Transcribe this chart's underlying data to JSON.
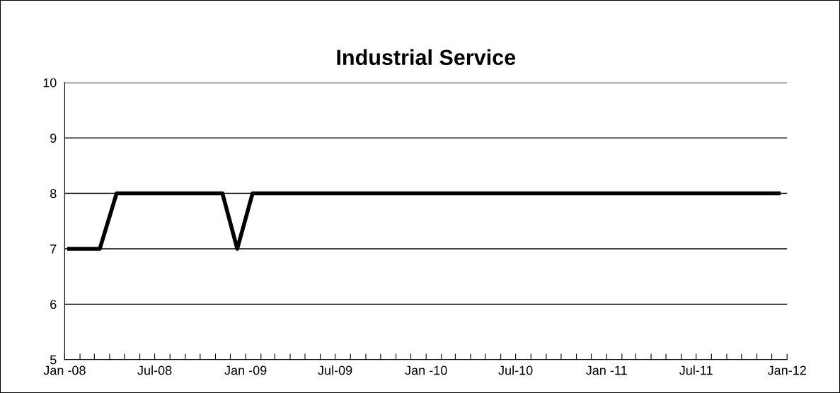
{
  "chart_data": {
    "type": "line",
    "title": "Industrial Service",
    "x": [
      "2008-01-10",
      "2008-03-12",
      "2008-04-15",
      "2008-11-15",
      "2008-12-15",
      "2009-01-15",
      "2011-12-15"
    ],
    "series": [
      {
        "color": "#000000",
        "values": [
          7,
          7,
          8,
          8,
          7,
          8,
          8
        ]
      }
    ],
    "xlim": [
      "2008-01-01",
      "2012-01-01"
    ],
    "xticks": [
      {
        "value": "2008-01-01",
        "label": "Jan -08"
      },
      {
        "value": "2008-02-01",
        "label": null
      },
      {
        "value": "2008-03-01",
        "label": null
      },
      {
        "value": "2008-04-01",
        "label": null
      },
      {
        "value": "2008-05-01",
        "label": null
      },
      {
        "value": "2008-06-01",
        "label": null
      },
      {
        "value": "2008-07-01",
        "label": "Jul-08"
      },
      {
        "value": "2008-08-01",
        "label": null
      },
      {
        "value": "2008-09-01",
        "label": null
      },
      {
        "value": "2008-10-01",
        "label": null
      },
      {
        "value": "2008-11-01",
        "label": null
      },
      {
        "value": "2008-12-01",
        "label": null
      },
      {
        "value": "2009-01-01",
        "label": "Jan -09"
      },
      {
        "value": "2009-02-01",
        "label": null
      },
      {
        "value": "2009-03-01",
        "label": null
      },
      {
        "value": "2009-04-01",
        "label": null
      },
      {
        "value": "2009-05-01",
        "label": null
      },
      {
        "value": "2009-06-01",
        "label": null
      },
      {
        "value": "2009-07-01",
        "label": "Jul-09"
      },
      {
        "value": "2009-08-01",
        "label": null
      },
      {
        "value": "2009-09-01",
        "label": null
      },
      {
        "value": "2009-10-01",
        "label": null
      },
      {
        "value": "2009-11-01",
        "label": null
      },
      {
        "value": "2009-12-01",
        "label": null
      },
      {
        "value": "2010-01-01",
        "label": "Jan -10"
      },
      {
        "value": "2010-02-01",
        "label": null
      },
      {
        "value": "2010-03-01",
        "label": null
      },
      {
        "value": "2010-04-01",
        "label": null
      },
      {
        "value": "2010-05-01",
        "label": null
      },
      {
        "value": "2010-06-01",
        "label": null
      },
      {
        "value": "2010-07-01",
        "label": "Jul-10"
      },
      {
        "value": "2010-08-01",
        "label": null
      },
      {
        "value": "2010-09-01",
        "label": null
      },
      {
        "value": "2010-10-01",
        "label": null
      },
      {
        "value": "2010-11-01",
        "label": null
      },
      {
        "value": "2010-12-01",
        "label": null
      },
      {
        "value": "2011-01-01",
        "label": "Jan -11"
      },
      {
        "value": "2011-02-01",
        "label": null
      },
      {
        "value": "2011-03-01",
        "label": null
      },
      {
        "value": "2011-04-01",
        "label": null
      },
      {
        "value": "2011-05-01",
        "label": null
      },
      {
        "value": "2011-06-01",
        "label": null
      },
      {
        "value": "2011-07-01",
        "label": "Jul-11"
      },
      {
        "value": "2011-08-01",
        "label": null
      },
      {
        "value": "2011-09-01",
        "label": null
      },
      {
        "value": "2011-10-01",
        "label": null
      },
      {
        "value": "2011-11-01",
        "label": null
      },
      {
        "value": "2011-12-01",
        "label": null
      },
      {
        "value": "2012-01-01",
        "label": "Jan-12"
      }
    ],
    "ylim": [
      5,
      10
    ],
    "yticks": [
      5,
      6,
      7,
      8,
      9,
      10
    ],
    "grid": "y",
    "marker": "none",
    "line_style": "solid",
    "legend": false
  }
}
